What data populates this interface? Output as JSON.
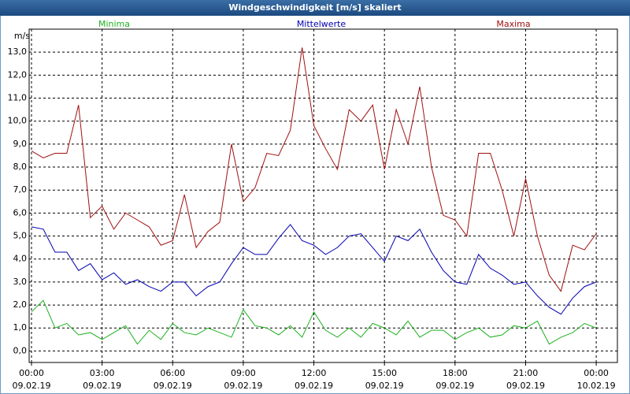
{
  "chart_data": {
    "type": "line",
    "title": "Windgeschwindigkeit [m/s] skaliert",
    "y_label": "m/s",
    "x": [
      0,
      0.5,
      1,
      1.5,
      2,
      2.5,
      3,
      3.5,
      4,
      4.5,
      5,
      5.5,
      6,
      6.5,
      7,
      7.5,
      8,
      8.5,
      9,
      9.5,
      10,
      10.5,
      11,
      11.5,
      12,
      12.5,
      13,
      13.5,
      14,
      14.5,
      15,
      15.5,
      16,
      16.5,
      17,
      17.5,
      18,
      18.5,
      19,
      19.5,
      20,
      20.5,
      21,
      21.5,
      22,
      22.5,
      23,
      23.5,
      24
    ],
    "series": [
      {
        "name": "Minima",
        "color": "#20b020",
        "values": [
          1.7,
          2.2,
          1.0,
          1.2,
          0.7,
          0.8,
          0.5,
          0.8,
          1.1,
          0.3,
          0.9,
          0.5,
          1.2,
          0.8,
          0.7,
          1.0,
          0.8,
          0.6,
          1.8,
          1.1,
          1.0,
          0.7,
          1.1,
          0.6,
          1.7,
          0.9,
          0.6,
          1.0,
          0.6,
          1.2,
          1.0,
          0.7,
          1.3,
          0.6,
          0.9,
          0.9,
          0.5,
          0.8,
          1.0,
          0.6,
          0.7,
          1.1,
          1.0,
          1.3,
          0.3,
          0.6,
          0.8,
          1.2,
          1.0
        ]
      },
      {
        "name": "Mittelwerte",
        "color": "#0000b0",
        "values": [
          5.4,
          5.3,
          4.3,
          4.3,
          3.5,
          3.8,
          3.1,
          3.4,
          2.9,
          3.1,
          2.8,
          2.6,
          3.0,
          3.0,
          2.4,
          2.8,
          3.0,
          3.8,
          4.5,
          4.2,
          4.2,
          4.9,
          5.5,
          4.8,
          4.6,
          4.2,
          4.5,
          5.0,
          5.1,
          4.5,
          3.9,
          5.0,
          4.8,
          5.3,
          4.3,
          3.5,
          3.0,
          2.9,
          4.2,
          3.6,
          3.3,
          2.9,
          3.0,
          2.4,
          1.9,
          1.6,
          2.3,
          2.8,
          3.0
        ]
      },
      {
        "name": "Maxima",
        "color": "#a01010",
        "values": [
          8.7,
          8.4,
          8.6,
          8.6,
          10.7,
          5.8,
          6.3,
          5.3,
          6.0,
          5.7,
          5.4,
          4.6,
          4.8,
          6.8,
          4.5,
          5.2,
          5.6,
          9.0,
          6.5,
          7.1,
          8.6,
          8.5,
          9.6,
          13.2,
          9.8,
          8.8,
          7.9,
          10.5,
          10.0,
          10.7,
          7.9,
          10.5,
          9.0,
          11.5,
          8.0,
          5.9,
          5.7,
          5.0,
          8.6,
          8.6,
          7.0,
          5.0,
          7.5,
          5.0,
          3.3,
          2.6,
          4.6,
          4.4,
          5.1
        ]
      }
    ],
    "xlim": [
      -0.1,
      24.9
    ],
    "xticks": [
      {
        "value": 0,
        "label": "00:00\n09.02.19"
      },
      {
        "value": 3,
        "label": "03:00\n09.02.19"
      },
      {
        "value": 6,
        "label": "06:00\n09.02.19"
      },
      {
        "value": 9,
        "label": "09:00\n09.02.19"
      },
      {
        "value": 12,
        "label": "12:00\n09.02.19"
      },
      {
        "value": 15,
        "label": "15:00\n09.02.19"
      },
      {
        "value": 18,
        "label": "18:00\n09.02.19"
      },
      {
        "value": 21,
        "label": "21:00\n09.02.19"
      },
      {
        "value": 24,
        "label": "00:00\n10.02.19"
      }
    ],
    "ylim": [
      -0.5,
      14.0
    ],
    "yticks": [
      {
        "value": 0,
        "label": "0,0"
      },
      {
        "value": 1,
        "label": "1,0"
      },
      {
        "value": 2,
        "label": "2,0"
      },
      {
        "value": 3,
        "label": "3,0"
      },
      {
        "value": 4,
        "label": "4,0"
      },
      {
        "value": 5,
        "label": "5,0"
      },
      {
        "value": 6,
        "label": "6,0"
      },
      {
        "value": 7,
        "label": "7,0"
      },
      {
        "value": 8,
        "label": "8,0"
      },
      {
        "value": 9,
        "label": "9,0"
      },
      {
        "value": 10,
        "label": "10,0"
      },
      {
        "value": 11,
        "label": "11,0"
      },
      {
        "value": 12,
        "label": "12,0"
      },
      {
        "value": 13,
        "label": "13,0"
      }
    ],
    "grid": true
  }
}
